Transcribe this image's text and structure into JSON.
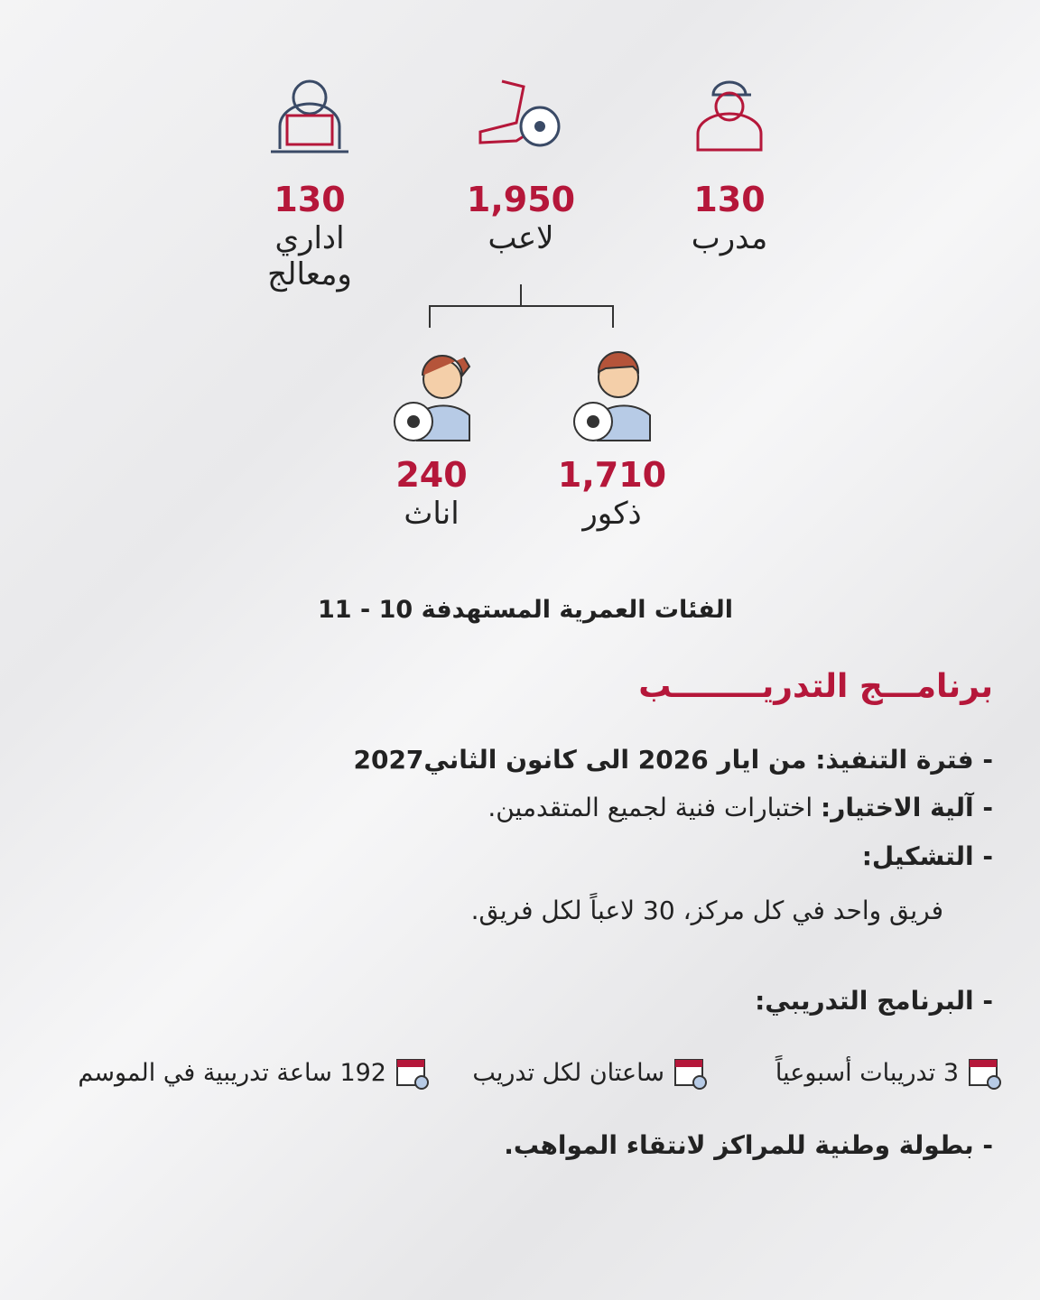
{
  "stats": [
    {
      "value": "130",
      "label": "مدرب"
    },
    {
      "value": "1,950",
      "label": "لاعب"
    },
    {
      "value": "130",
      "label": "اداري ومعالج"
    }
  ],
  "players": [
    {
      "value": "1,710",
      "label": "ذكور"
    },
    {
      "value": "240",
      "label": "اناث"
    }
  ],
  "age_groups": "الفئات العمرية المستهدفة 10 - 11",
  "program": {
    "title": "برنامـــج التدريــــــــب",
    "items": [
      {
        "label": "فترة التنفيذ:",
        "text": "من ايار 2026 الى كانون الثاني2027"
      },
      {
        "label": "آلية الاختيار:",
        "text": "اختبارات فنية لجميع المتقدمين."
      },
      {
        "label": "التشكيل:",
        "detail": "فريق واحد في كل مركز، 30 لاعباً لكل فريق."
      },
      {
        "label": "البرنامج التدريبي:"
      },
      {
        "label": "بطولة وطنية للمراكز لانتقاء المواهب."
      }
    ],
    "schedule": [
      "3 تدريبات أسبوعياً",
      "ساعتان لكل تدريب",
      "192 ساعة تدريبية في الموسم"
    ]
  }
}
